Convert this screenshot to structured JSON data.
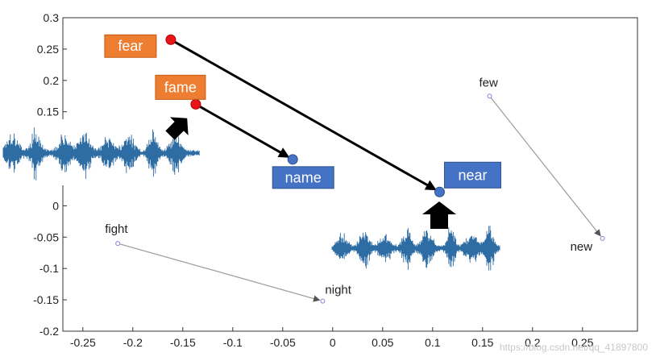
{
  "chart_data": {
    "type": "scatter",
    "title": "",
    "xlabel": "",
    "ylabel": "",
    "xlim": [
      -0.27,
      0.305
    ],
    "ylim": [
      -0.2,
      0.3
    ],
    "xticks": [
      -0.25,
      -0.2,
      -0.15,
      -0.1,
      -0.05,
      0,
      0.05,
      0.1,
      0.15,
      0.2,
      0.25
    ],
    "xtick_labels": [
      "-0.25",
      "-0.2",
      "-0.15",
      "-0.1",
      "-0.05",
      "0",
      "0.05",
      "0.1",
      "0.15",
      "0.2",
      "0.25"
    ],
    "yticks": [
      -0.2,
      -0.15,
      -0.1,
      -0.05,
      0,
      0.05,
      0.1,
      0.15,
      0.2,
      0.25,
      0.3
    ],
    "ytick_labels": [
      "-0.2",
      "-0.15",
      "-0.1",
      "-0.05",
      "0",
      "0.05",
      "0.1",
      "0.15",
      "0.2",
      "0.25",
      "0.3"
    ],
    "grid": false,
    "points": [
      {
        "word": "fear",
        "x": -0.162,
        "y": 0.265,
        "style": "highlight-source"
      },
      {
        "word": "near",
        "x": 0.107,
        "y": 0.022,
        "style": "highlight-target"
      },
      {
        "word": "fame",
        "x": -0.137,
        "y": 0.162,
        "style": "highlight-source"
      },
      {
        "word": "name",
        "x": -0.04,
        "y": 0.074,
        "style": "highlight-target"
      },
      {
        "word": "few",
        "x": 0.157,
        "y": 0.175,
        "style": "plain"
      },
      {
        "word": "new",
        "x": 0.27,
        "y": -0.052,
        "style": "plain"
      },
      {
        "word": "fight",
        "x": -0.215,
        "y": -0.06,
        "style": "plain"
      },
      {
        "word": "night",
        "x": -0.01,
        "y": -0.152,
        "style": "plain"
      }
    ],
    "pairs": [
      {
        "from": "fear",
        "to": "near",
        "style": "bold"
      },
      {
        "from": "fame",
        "to": "name",
        "style": "bold"
      },
      {
        "from": "few",
        "to": "new",
        "style": "thin"
      },
      {
        "from": "fight",
        "to": "night",
        "style": "thin"
      }
    ],
    "colors": {
      "source_point": "#e8141a",
      "target_point": "#4472c4",
      "source_box": "#ed7d31",
      "target_box": "#4472c4",
      "waveform": "#2e6da4",
      "thin_arrow": "#9a9a9a",
      "bold_arrow": "#000000"
    },
    "decorations": [
      "waveform-left",
      "waveform-center-right",
      "up-arrow-icon-near",
      "diagonal-arrow-icon-fame"
    ]
  },
  "watermark": "https://blog.csdn.net/qq_41897800"
}
